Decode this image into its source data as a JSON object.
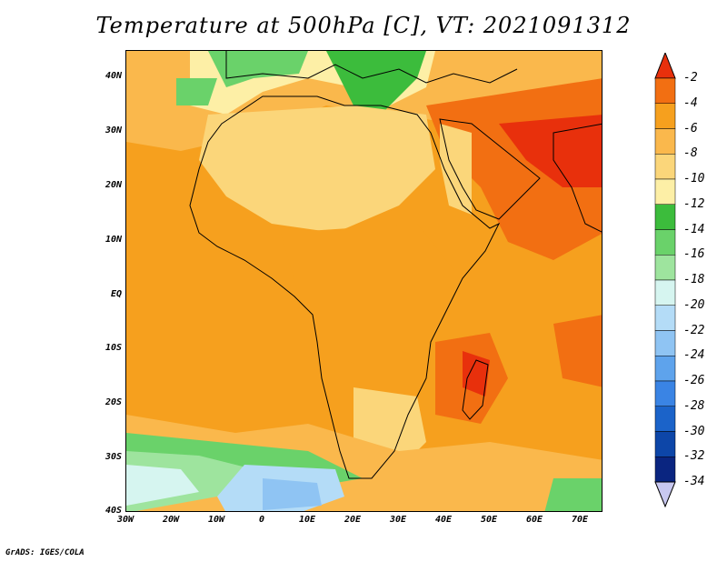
{
  "title": "Temperature at 500hPa [C], VT: 2021091312",
  "credit": "GrADS: IGES/COLA",
  "map": {
    "region": "Africa and surrounding",
    "lon_range": [
      -30,
      75
    ],
    "lat_range": [
      -40,
      45
    ],
    "lat_labels": [
      "40N",
      "30N",
      "20N",
      "10N",
      "EQ",
      "10S",
      "20S",
      "30S",
      "40S"
    ],
    "lon_labels": [
      "30W",
      "20W",
      "10W",
      "0",
      "10E",
      "20E",
      "30E",
      "40E",
      "50E",
      "60E",
      "70E"
    ]
  },
  "colorbar": {
    "labels": [
      "-2",
      "-4",
      "-6",
      "-8",
      "-10",
      "-12",
      "-14",
      "-16",
      "-18",
      "-20",
      "-22",
      "-24",
      "-26",
      "-28",
      "-30",
      "-32",
      "-34"
    ],
    "colors": [
      "#e8300c",
      "#f26f12",
      "#f6a01e",
      "#fab84c",
      "#fbd67a",
      "#fdefa6",
      "#3cbc3c",
      "#6ad26a",
      "#9ee49e",
      "#d6f5f0",
      "#b4dcf7",
      "#8fc4f3",
      "#5ea3ec",
      "#3a84e4",
      "#1b63c9",
      "#0d46a8",
      "#0a2580",
      "#c8c8f0"
    ]
  }
}
